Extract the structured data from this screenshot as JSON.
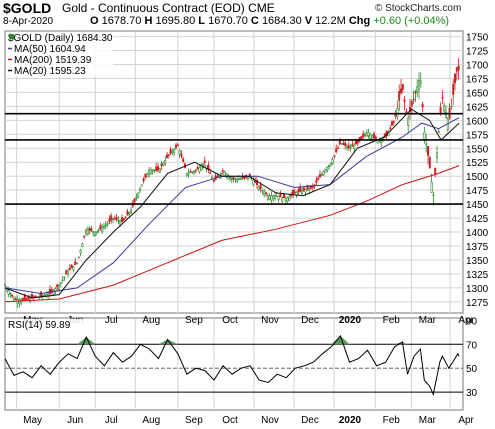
{
  "header": {
    "symbol": "$GOLD",
    "description": "Gold - Continuous Contract (EOD)",
    "exchange": "CME",
    "brand": "© StockCharts.com",
    "date": "8-Apr-2020",
    "open_label": "O",
    "open": "1678.70",
    "high_label": "H",
    "high": "1695.80",
    "low_label": "L",
    "low": "1670.70",
    "close_label": "C",
    "close": "1684.30",
    "volume_label": "V",
    "volume": "12.2M",
    "change_label": "Chg",
    "change": "+0.60 (+0.04%)"
  },
  "colors": {
    "up": "#2f8a2f",
    "down": "#cc2222",
    "ma50": "#3a3a9a",
    "ma200": "#cc1111",
    "ma20": "#111111",
    "rsi_fill": "#5a9a5a",
    "grid": "#d4d4d4"
  },
  "chart_data": [
    {
      "type": "candlestick",
      "title": "$GOLD (Daily) 1684.30",
      "x_tick_labels": [
        "May",
        "Jun",
        "Jul",
        "Aug",
        "Sep",
        "Oct",
        "Nov",
        "Dec",
        "2020",
        "Feb",
        "Mar",
        "Apr"
      ],
      "y_ticks": [
        1275,
        1300,
        1325,
        1350,
        1375,
        1400,
        1425,
        1450,
        1475,
        1500,
        1525,
        1550,
        1575,
        1600,
        1625,
        1650,
        1675,
        1700,
        1725,
        1750
      ],
      "ylim": [
        1255,
        1760
      ],
      "grid": true,
      "price_path": [
        [
          "2019-04-22",
          1305
        ],
        [
          "2019-04-29",
          1280
        ],
        [
          "2019-05-06",
          1278
        ],
        [
          "2019-05-13",
          1282
        ],
        [
          "2019-05-20",
          1285
        ],
        [
          "2019-05-27",
          1290
        ],
        [
          "2019-06-03",
          1305
        ],
        [
          "2019-06-10",
          1330
        ],
        [
          "2019-06-17",
          1345
        ],
        [
          "2019-06-24",
          1405
        ],
        [
          "2019-07-01",
          1400
        ],
        [
          "2019-07-08",
          1410
        ],
        [
          "2019-07-15",
          1425
        ],
        [
          "2019-07-22",
          1418
        ],
        [
          "2019-07-29",
          1440
        ],
        [
          "2019-08-05",
          1480
        ],
        [
          "2019-08-12",
          1512
        ],
        [
          "2019-08-19",
          1510
        ],
        [
          "2019-08-26",
          1535
        ],
        [
          "2019-09-03",
          1555
        ],
        [
          "2019-09-10",
          1505
        ],
        [
          "2019-09-17",
          1510
        ],
        [
          "2019-09-24",
          1525
        ],
        [
          "2019-10-01",
          1490
        ],
        [
          "2019-10-08",
          1510
        ],
        [
          "2019-10-15",
          1495
        ],
        [
          "2019-10-22",
          1495
        ],
        [
          "2019-10-29",
          1500
        ],
        [
          "2019-11-05",
          1480
        ],
        [
          "2019-11-12",
          1465
        ],
        [
          "2019-11-19",
          1465
        ],
        [
          "2019-11-26",
          1460
        ],
        [
          "2019-12-03",
          1470
        ],
        [
          "2019-12-10",
          1475
        ],
        [
          "2019-12-17",
          1480
        ],
        [
          "2019-12-24",
          1505
        ],
        [
          "2019-12-31",
          1525
        ],
        [
          "2020-01-07",
          1560
        ],
        [
          "2020-01-14",
          1550
        ],
        [
          "2020-01-21",
          1560
        ],
        [
          "2020-01-28",
          1580
        ],
        [
          "2020-02-04",
          1565
        ],
        [
          "2020-02-11",
          1570
        ],
        [
          "2020-02-18",
          1600
        ],
        [
          "2020-02-24",
          1660
        ],
        [
          "2020-02-28",
          1600
        ],
        [
          "2020-03-04",
          1640
        ],
        [
          "2020-03-09",
          1680
        ],
        [
          "2020-03-12",
          1580
        ],
        [
          "2020-03-16",
          1520
        ],
        [
          "2020-03-19",
          1465
        ],
        [
          "2020-03-24",
          1600
        ],
        [
          "2020-03-26",
          1640
        ],
        [
          "2020-03-31",
          1595
        ],
        [
          "2020-04-03",
          1640
        ],
        [
          "2020-04-07",
          1700
        ],
        [
          "2020-04-08",
          1684
        ]
      ],
      "horizontal_lines": [
        1450,
        1565,
        1612
      ],
      "series": [
        {
          "name": "MA(50)",
          "value": "1604.94",
          "color": "#3a3a9a",
          "points": [
            [
              "2019-04-22",
              1300
            ],
            [
              "2019-05-20",
              1290
            ],
            [
              "2019-06-17",
              1300
            ],
            [
              "2019-07-15",
              1345
            ],
            [
              "2019-08-12",
              1415
            ],
            [
              "2019-09-09",
              1480
            ],
            [
              "2019-10-07",
              1500
            ],
            [
              "2019-11-04",
              1500
            ],
            [
              "2019-12-02",
              1480
            ],
            [
              "2019-12-30",
              1485
            ],
            [
              "2020-01-27",
              1535
            ],
            [
              "2020-02-24",
              1570
            ],
            [
              "2020-03-10",
              1595
            ],
            [
              "2020-03-23",
              1585
            ],
            [
              "2020-04-08",
              1605
            ]
          ]
        },
        {
          "name": "MA(200)",
          "value": "1519.39",
          "color": "#cc1111",
          "points": [
            [
              "2019-04-22",
              1275
            ],
            [
              "2019-06-03",
              1280
            ],
            [
              "2019-07-15",
              1305
            ],
            [
              "2019-08-26",
              1345
            ],
            [
              "2019-10-07",
              1385
            ],
            [
              "2019-11-18",
              1405
            ],
            [
              "2019-12-30",
              1430
            ],
            [
              "2020-01-27",
              1455
            ],
            [
              "2020-02-24",
              1485
            ],
            [
              "2020-03-23",
              1505
            ],
            [
              "2020-04-08",
              1519
            ]
          ]
        },
        {
          "name": "MA(20)",
          "value": "1595.23",
          "color": "#111111",
          "points": [
            [
              "2019-04-22",
              1300
            ],
            [
              "2019-05-13",
              1282
            ],
            [
              "2019-06-03",
              1288
            ],
            [
              "2019-06-24",
              1350
            ],
            [
              "2019-07-15",
              1400
            ],
            [
              "2019-08-05",
              1445
            ],
            [
              "2019-08-26",
              1505
            ],
            [
              "2019-09-16",
              1525
            ],
            [
              "2019-10-07",
              1500
            ],
            [
              "2019-10-28",
              1500
            ],
            [
              "2019-11-18",
              1470
            ],
            [
              "2019-12-09",
              1465
            ],
            [
              "2019-12-30",
              1485
            ],
            [
              "2020-01-20",
              1550
            ],
            [
              "2020-02-10",
              1570
            ],
            [
              "2020-03-02",
              1620
            ],
            [
              "2020-03-16",
              1600
            ],
            [
              "2020-03-25",
              1565
            ],
            [
              "2020-04-08",
              1595
            ]
          ]
        }
      ]
    },
    {
      "type": "line",
      "title": "RSI(14) 59.89",
      "y_ticks": [
        30,
        50,
        70,
        90
      ],
      "ylim": [
        15,
        92
      ],
      "reference_lines": [
        30,
        50,
        70
      ],
      "x_tick_labels": [
        "May",
        "Jun",
        "Jul",
        "Aug",
        "Sep",
        "Oct",
        "Nov",
        "Dec",
        "2020",
        "Feb",
        "Mar",
        "Apr"
      ],
      "series": [
        {
          "name": "RSI(14)",
          "value": "59.89",
          "color": "#000000",
          "points": [
            [
              "2019-04-22",
              58
            ],
            [
              "2019-04-29",
              44
            ],
            [
              "2019-05-06",
              47
            ],
            [
              "2019-05-13",
              42
            ],
            [
              "2019-05-20",
              52
            ],
            [
              "2019-05-27",
              45
            ],
            [
              "2019-06-03",
              55
            ],
            [
              "2019-06-10",
              62
            ],
            [
              "2019-06-17",
              58
            ],
            [
              "2019-06-24",
              76
            ],
            [
              "2019-07-01",
              60
            ],
            [
              "2019-07-08",
              52
            ],
            [
              "2019-07-15",
              63
            ],
            [
              "2019-07-22",
              55
            ],
            [
              "2019-07-29",
              60
            ],
            [
              "2019-08-05",
              70
            ],
            [
              "2019-08-12",
              66
            ],
            [
              "2019-08-19",
              58
            ],
            [
              "2019-08-26",
              74
            ],
            [
              "2019-09-03",
              62
            ],
            [
              "2019-09-10",
              45
            ],
            [
              "2019-09-17",
              50
            ],
            [
              "2019-09-24",
              48
            ],
            [
              "2019-10-01",
              40
            ],
            [
              "2019-10-08",
              52
            ],
            [
              "2019-10-15",
              45
            ],
            [
              "2019-10-22",
              50
            ],
            [
              "2019-10-29",
              52
            ],
            [
              "2019-11-05",
              40
            ],
            [
              "2019-11-12",
              38
            ],
            [
              "2019-11-19",
              45
            ],
            [
              "2019-11-26",
              42
            ],
            [
              "2019-12-03",
              50
            ],
            [
              "2019-12-10",
              52
            ],
            [
              "2019-12-17",
              55
            ],
            [
              "2019-12-24",
              62
            ],
            [
              "2019-12-31",
              68
            ],
            [
              "2020-01-07",
              77
            ],
            [
              "2020-01-14",
              55
            ],
            [
              "2020-01-21",
              58
            ],
            [
              "2020-01-28",
              65
            ],
            [
              "2020-02-04",
              52
            ],
            [
              "2020-02-11",
              55
            ],
            [
              "2020-02-18",
              68
            ],
            [
              "2020-02-24",
              72
            ],
            [
              "2020-02-28",
              45
            ],
            [
              "2020-03-04",
              60
            ],
            [
              "2020-03-09",
              66
            ],
            [
              "2020-03-12",
              40
            ],
            [
              "2020-03-16",
              35
            ],
            [
              "2020-03-19",
              28
            ],
            [
              "2020-03-24",
              55
            ],
            [
              "2020-03-26",
              60
            ],
            [
              "2020-03-31",
              50
            ],
            [
              "2020-04-03",
              55
            ],
            [
              "2020-04-07",
              62
            ],
            [
              "2020-04-08",
              60
            ]
          ]
        }
      ]
    }
  ]
}
